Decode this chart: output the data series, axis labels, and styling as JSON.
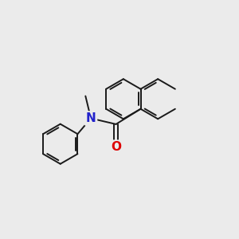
{
  "background_color": "#ebebeb",
  "bond_color": "#1a1a1a",
  "N_color": "#2222cc",
  "O_color": "#dd0000",
  "line_width": 1.4,
  "figsize": [
    3.0,
    3.0
  ],
  "dpi": 100
}
